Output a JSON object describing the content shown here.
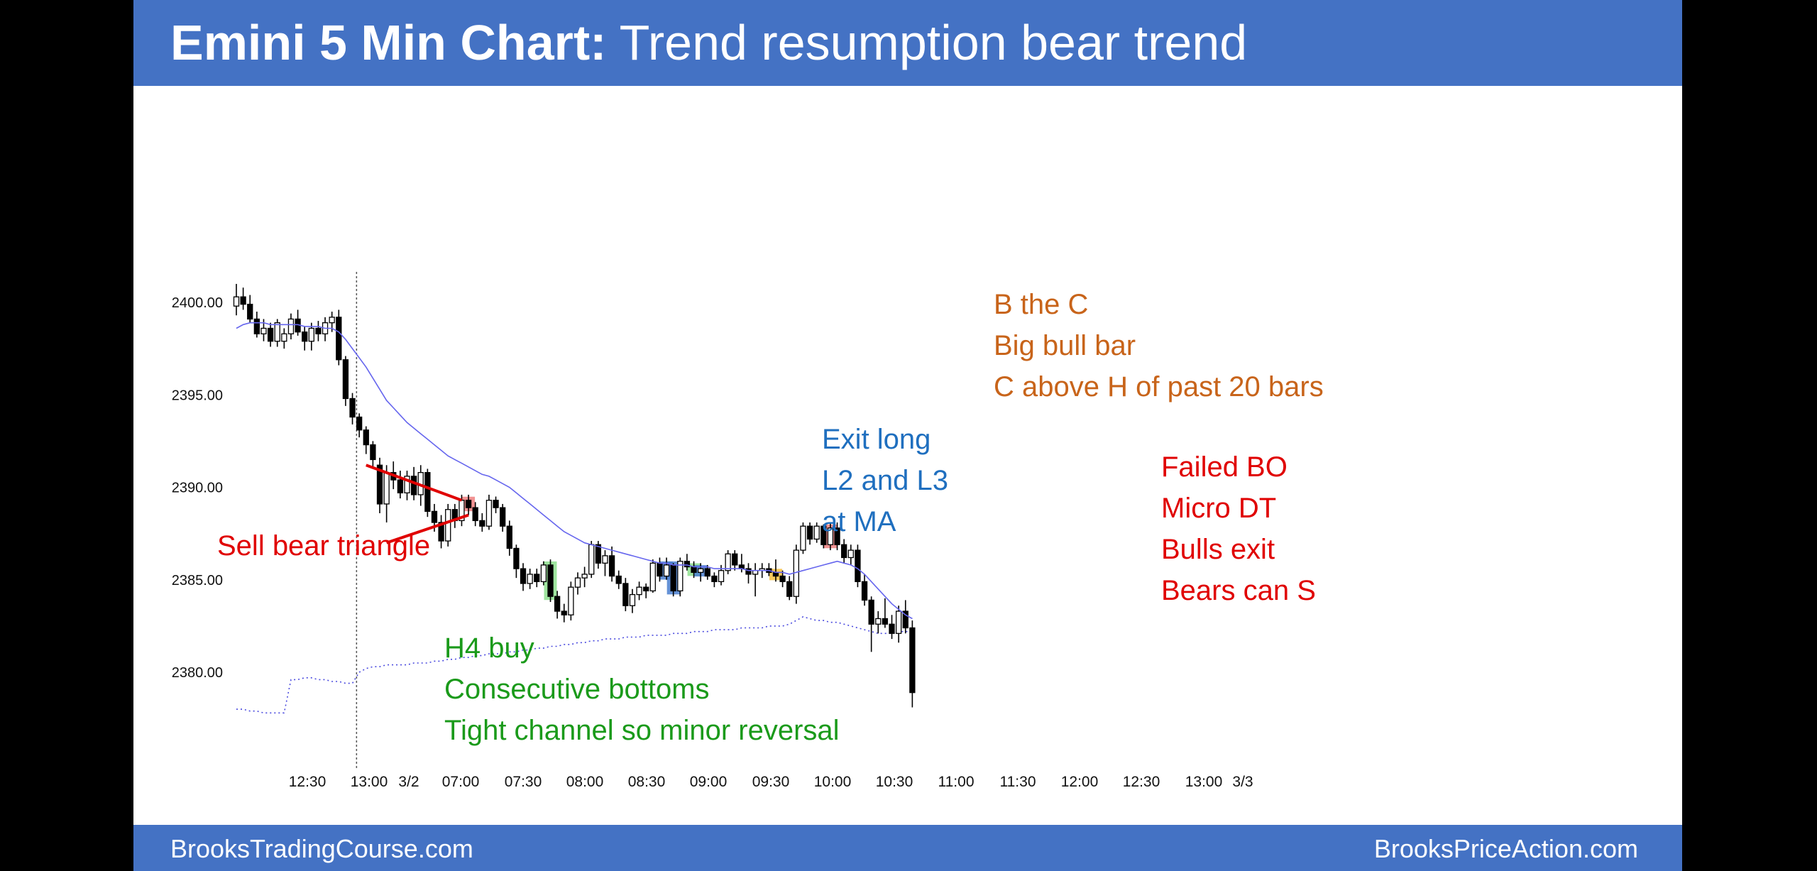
{
  "header": {
    "title_bold": "Emini 5 Min Chart:",
    "title_rest": " Trend resumption bear trend"
  },
  "footer": {
    "left": "BrooksTradingCourse.com",
    "right": "BrooksPriceAction.com"
  },
  "colors": {
    "header_bg": "#4472c4",
    "bull_body": "#ffffff",
    "bear_body": "#000000",
    "moving_average": "#6666ee",
    "triangle": "#e00000",
    "red_text": "#e00000",
    "green_text": "#1a9a1a",
    "blue_text": "#1f6fbf",
    "orange_text": "#c8641a"
  },
  "chart_data": {
    "type": "candlestick",
    "ylim": [
      2376,
      2402.5
    ],
    "yticks": [
      "2400.00",
      "2395.00",
      "2390.00",
      "2385.00",
      "2380.00"
    ],
    "xticks": [
      "12:30",
      "13:00",
      "3/2",
      "07:00",
      "07:30",
      "08:00",
      "08:30",
      "09:00",
      "09:30",
      "10:00",
      "10:30",
      "11:00",
      "11:30",
      "12:00",
      "12:30",
      "13:00",
      "3/3"
    ],
    "n_bars": 100,
    "session_break_index": 18,
    "candles": [
      [
        2399.8,
        2401.0,
        2399.3,
        2400.3
      ],
      [
        2400.3,
        2400.8,
        2399.6,
        2399.9
      ],
      [
        2399.9,
        2400.4,
        2398.9,
        2399.1
      ],
      [
        2399.1,
        2399.5,
        2398.1,
        2398.3
      ],
      [
        2398.3,
        2399.1,
        2397.9,
        2398.6
      ],
      [
        2398.6,
        2398.9,
        2397.6,
        2397.9
      ],
      [
        2397.9,
        2399.1,
        2397.6,
        2398.9
      ],
      [
        2397.9,
        2398.6,
        2397.5,
        2398.3
      ],
      [
        2398.3,
        2399.4,
        2398.0,
        2399.1
      ],
      [
        2399.1,
        2399.6,
        2398.2,
        2398.4
      ],
      [
        2398.4,
        2398.7,
        2397.4,
        2397.9
      ],
      [
        2397.9,
        2398.9,
        2397.4,
        2398.6
      ],
      [
        2398.6,
        2399.0,
        2397.9,
        2398.3
      ],
      [
        2398.3,
        2399.2,
        2397.9,
        2398.9
      ],
      [
        2398.9,
        2399.5,
        2398.4,
        2399.2
      ],
      [
        2399.2,
        2399.6,
        2396.6,
        2396.9
      ],
      [
        2396.9,
        2397.1,
        2394.4,
        2394.8
      ],
      [
        2394.8,
        2395.1,
        2393.4,
        2393.8
      ],
      [
        2393.8,
        2394.0,
        2392.7,
        2393.1
      ],
      [
        2393.1,
        2393.3,
        2391.8,
        2392.3
      ],
      [
        2392.3,
        2392.5,
        2391.0,
        2391.5
      ],
      [
        2391.2,
        2391.6,
        2388.6,
        2389.1
      ],
      [
        2389.1,
        2391.2,
        2388.1,
        2390.8
      ],
      [
        2390.8,
        2391.4,
        2389.9,
        2390.4
      ],
      [
        2390.4,
        2390.9,
        2389.4,
        2389.7
      ],
      [
        2389.7,
        2390.9,
        2389.3,
        2390.6
      ],
      [
        2390.6,
        2391.1,
        2389.3,
        2389.6
      ],
      [
        2389.6,
        2391.2,
        2389.0,
        2390.8
      ],
      [
        2390.8,
        2391.0,
        2388.4,
        2388.7
      ],
      [
        2388.7,
        2389.1,
        2387.6,
        2388.1
      ],
      [
        2388.1,
        2388.5,
        2386.7,
        2387.1
      ],
      [
        2387.1,
        2389.1,
        2386.8,
        2388.8
      ],
      [
        2388.8,
        2389.1,
        2387.8,
        2388.2
      ],
      [
        2388.2,
        2389.6,
        2387.9,
        2389.3
      ],
      [
        2389.3,
        2389.6,
        2388.5,
        2388.9
      ],
      [
        2388.9,
        2389.2,
        2387.9,
        2388.2
      ],
      [
        2388.2,
        2388.6,
        2387.6,
        2387.9
      ],
      [
        2387.9,
        2389.6,
        2387.7,
        2389.3
      ],
      [
        2389.3,
        2389.5,
        2388.6,
        2388.9
      ],
      [
        2388.9,
        2389.1,
        2387.6,
        2387.9
      ],
      [
        2387.9,
        2388.2,
        2386.3,
        2386.7
      ],
      [
        2386.7,
        2386.9,
        2385.1,
        2385.6
      ],
      [
        2385.6,
        2385.9,
        2384.4,
        2384.8
      ],
      [
        2384.8,
        2385.6,
        2384.5,
        2385.3
      ],
      [
        2385.3,
        2385.6,
        2384.6,
        2384.9
      ],
      [
        2384.9,
        2386.0,
        2384.7,
        2385.8
      ],
      [
        2385.8,
        2386.1,
        2383.8,
        2384.1
      ],
      [
        2384.1,
        2384.4,
        2382.9,
        2383.3
      ],
      [
        2383.3,
        2383.7,
        2382.7,
        2383.1
      ],
      [
        2383.1,
        2384.9,
        2382.8,
        2384.6
      ],
      [
        2384.6,
        2385.4,
        2384.2,
        2385.1
      ],
      [
        2385.1,
        2385.7,
        2384.6,
        2385.3
      ],
      [
        2385.3,
        2387.1,
        2385.1,
        2386.9
      ],
      [
        2386.9,
        2387.1,
        2385.6,
        2385.9
      ],
      [
        2385.9,
        2386.6,
        2385.2,
        2386.3
      ],
      [
        2386.3,
        2386.8,
        2384.9,
        2385.2
      ],
      [
        2385.2,
        2385.5,
        2384.5,
        2384.8
      ],
      [
        2384.8,
        2385.1,
        2383.3,
        2383.6
      ],
      [
        2383.6,
        2384.5,
        2383.2,
        2384.2
      ],
      [
        2384.2,
        2384.9,
        2383.9,
        2384.6
      ],
      [
        2384.6,
        2384.8,
        2384.0,
        2384.4
      ],
      [
        2384.4,
        2386.1,
        2384.3,
        2385.9
      ],
      [
        2385.9,
        2386.2,
        2384.9,
        2385.2
      ],
      [
        2385.2,
        2386.2,
        2385.0,
        2385.8
      ],
      [
        2385.8,
        2385.9,
        2384.1,
        2384.4
      ],
      [
        2384.4,
        2386.2,
        2384.1,
        2386.0
      ],
      [
        2386.0,
        2386.4,
        2385.5,
        2385.7
      ],
      [
        2385.7,
        2386.0,
        2385.1,
        2385.4
      ],
      [
        2385.4,
        2385.9,
        2384.9,
        2385.6
      ],
      [
        2385.6,
        2385.8,
        2385.0,
        2385.2
      ],
      [
        2385.2,
        2385.4,
        2384.6,
        2384.9
      ],
      [
        2384.9,
        2385.8,
        2384.7,
        2385.5
      ],
      [
        2385.5,
        2386.6,
        2385.3,
        2386.4
      ],
      [
        2386.4,
        2386.6,
        2385.5,
        2385.8
      ],
      [
        2385.8,
        2386.4,
        2385.4,
        2385.6
      ],
      [
        2385.6,
        2385.9,
        2384.8,
        2385.3
      ],
      [
        2385.3,
        2385.9,
        2384.1,
        2385.5
      ],
      [
        2385.5,
        2385.9,
        2385.1,
        2385.6
      ],
      [
        2385.6,
        2385.9,
        2385.2,
        2385.4
      ],
      [
        2385.4,
        2386.1,
        2384.9,
        2385.2
      ],
      [
        2385.2,
        2385.5,
        2384.6,
        2384.9
      ],
      [
        2384.9,
        2385.2,
        2383.9,
        2384.1
      ],
      [
        2384.1,
        2386.9,
        2383.7,
        2386.6
      ],
      [
        2386.6,
        2388.1,
        2386.4,
        2387.9
      ],
      [
        2387.9,
        2388.1,
        2386.9,
        2387.2
      ],
      [
        2387.2,
        2388.1,
        2387.0,
        2387.9
      ],
      [
        2387.9,
        2388.0,
        2386.7,
        2386.9
      ],
      [
        2386.9,
        2388.1,
        2386.6,
        2387.8
      ],
      [
        2387.8,
        2388.1,
        2386.6,
        2386.9
      ],
      [
        2386.9,
        2387.2,
        2385.9,
        2386.2
      ],
      [
        2386.2,
        2386.9,
        2385.8,
        2386.6
      ],
      [
        2386.6,
        2386.9,
        2384.6,
        2384.9
      ],
      [
        2384.9,
        2385.3,
        2383.6,
        2383.9
      ],
      [
        2383.9,
        2384.1,
        2381.1,
        2382.6
      ],
      [
        2382.6,
        2383.3,
        2382.1,
        2382.9
      ],
      [
        2382.9,
        2384.0,
        2382.4,
        2382.6
      ],
      [
        2382.6,
        2383.1,
        2381.8,
        2382.1
      ],
      [
        2382.1,
        2383.6,
        2381.6,
        2383.3
      ],
      [
        2383.3,
        2383.9,
        2382.1,
        2382.4
      ],
      [
        2382.4,
        2382.8,
        2378.1,
        2378.9
      ]
    ],
    "moving_average": [
      2398.6,
      2398.8,
      2398.9,
      2398.9,
      2398.9,
      2398.8,
      2398.8,
      2398.8,
      2398.8,
      2398.8,
      2398.7,
      2398.7,
      2398.7,
      2398.6,
      2398.6,
      2398.4,
      2398.0,
      2397.5,
      2397.0,
      2396.5,
      2395.9,
      2395.3,
      2394.7,
      2394.3,
      2393.9,
      2393.5,
      2393.2,
      2392.9,
      2392.6,
      2392.3,
      2392.0,
      2391.7,
      2391.5,
      2391.3,
      2391.1,
      2390.9,
      2390.7,
      2390.6,
      2390.4,
      2390.2,
      2390.0,
      2389.7,
      2389.4,
      2389.1,
      2388.8,
      2388.5,
      2388.2,
      2387.9,
      2387.6,
      2387.4,
      2387.2,
      2387.0,
      2386.9,
      2386.8,
      2386.7,
      2386.6,
      2386.5,
      2386.4,
      2386.3,
      2386.2,
      2386.1,
      2386.0,
      2385.9,
      2385.9,
      2385.8,
      2385.8,
      2385.8,
      2385.7,
      2385.7,
      2385.7,
      2385.6,
      2385.6,
      2385.6,
      2385.6,
      2385.6,
      2385.5,
      2385.5,
      2385.5,
      2385.5,
      2385.4,
      2385.4,
      2385.3,
      2385.4,
      2385.5,
      2385.6,
      2385.7,
      2385.8,
      2385.9,
      2386.0,
      2385.9,
      2385.8,
      2385.6,
      2385.3,
      2384.9,
      2384.5,
      2384.1,
      2383.7,
      2383.4,
      2383.1,
      2382.9
    ],
    "lower_line": [
      2378.0,
      2378.0,
      2377.9,
      2377.9,
      2377.8,
      2377.8,
      2377.8,
      2377.8,
      2379.6,
      2379.6,
      2379.7,
      2379.7,
      2379.6,
      2379.6,
      2379.5,
      2379.5,
      2379.4,
      2379.4,
      2380.0,
      2380.2,
      2380.3,
      2380.3,
      2380.4,
      2380.4,
      2380.4,
      2380.4,
      2380.5,
      2380.5,
      2380.5,
      2380.6,
      2380.6,
      2380.7,
      2380.7,
      2380.8,
      2380.8,
      2380.9,
      2380.9,
      2381.0,
      2381.0,
      2381.0,
      2381.1,
      2381.1,
      2381.2,
      2381.2,
      2381.3,
      2381.3,
      2381.4,
      2381.4,
      2381.5,
      2381.5,
      2381.6,
      2381.6,
      2381.7,
      2381.7,
      2381.8,
      2381.8,
      2381.8,
      2381.9,
      2381.9,
      2381.9,
      2382.0,
      2382.0,
      2382.0,
      2382.0,
      2382.1,
      2382.1,
      2382.1,
      2382.2,
      2382.2,
      2382.2,
      2382.3,
      2382.3,
      2382.3,
      2382.3,
      2382.4,
      2382.4,
      2382.4,
      2382.4,
      2382.5,
      2382.5,
      2382.5,
      2382.6,
      2382.8,
      2383.0,
      2382.9,
      2382.8,
      2382.8,
      2382.7,
      2382.7,
      2382.6,
      2382.5,
      2382.4,
      2382.3,
      2382.2,
      2382.1,
      2382.1,
      2382.1,
      2382.2,
      2382.2,
      2382.2
    ],
    "triangle": {
      "upper": [
        [
          19,
          2391.2
        ],
        [
          33,
          2389.3
        ]
      ],
      "lower": [
        [
          22,
          2387.0
        ],
        [
          34,
          2388.5
        ]
      ]
    },
    "highlights": [
      {
        "index": 34,
        "color": "#f08080"
      },
      {
        "index": 46,
        "color": "#8ee08e"
      },
      {
        "index": 63,
        "color": "#4a7fd0"
      },
      {
        "index": 64,
        "color": "#4a7fd0"
      },
      {
        "index": 67,
        "color": "#8ee08e"
      },
      {
        "index": 68,
        "color": "#4a7fd0"
      },
      {
        "index": 79,
        "color": "#f7c040"
      },
      {
        "index": 87,
        "color": "#f08080"
      }
    ]
  },
  "annotations": {
    "sell_bear_triangle": {
      "lines": [
        "Sell bear triangle"
      ],
      "color": "#e00000"
    },
    "h4_buy": {
      "lines": [
        "H4 buy",
        "Consecutive bottoms",
        "Tight channel so minor reversal"
      ],
      "color": "#1a9a1a"
    },
    "exit_long": {
      "lines": [
        "Exit long",
        "L2 and L3",
        "at MA"
      ],
      "color": "#1f6fbf"
    },
    "b_the_c": {
      "lines": [
        "B the C",
        "Big bull bar",
        "C above H of past 20 bars"
      ],
      "color": "#c8641a"
    },
    "failed_bo": {
      "lines": [
        "Failed BO",
        "Micro DT",
        "Bulls exit",
        "Bears can S"
      ],
      "color": "#e00000"
    }
  }
}
